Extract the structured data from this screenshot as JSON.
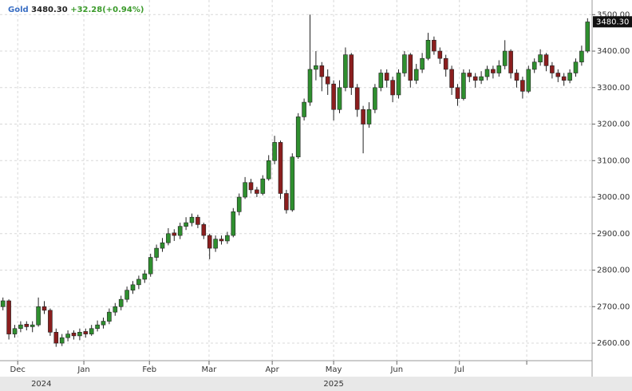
{
  "chart_data": {
    "type": "candlestick",
    "symbol": "Gold",
    "last_price": {
      "value": 3480.3,
      "label": "3480.30"
    },
    "change_label": "+32.28(+0.94%)",
    "up_color": "#2f8f2f",
    "down_color": "#8b1e1e",
    "grid": true,
    "ylim": [
      2552,
      3540
    ],
    "yticks": [
      {
        "value": 2600,
        "label": "2600.00"
      },
      {
        "value": 2700,
        "label": "2700.00"
      },
      {
        "value": 2800,
        "label": "2800.00"
      },
      {
        "value": 2900,
        "label": "2900.00"
      },
      {
        "value": 3000,
        "label": "3000.00"
      },
      {
        "value": 3100,
        "label": "3100.00"
      },
      {
        "value": 3200,
        "label": "3200.00"
      },
      {
        "value": 3300,
        "label": "3300.00"
      },
      {
        "value": 3400,
        "label": "3400.00"
      },
      {
        "value": 3500,
        "label": "3500.00"
      }
    ],
    "xticks": [
      {
        "value": 2.5,
        "label": "Dec"
      },
      {
        "value": 13.7,
        "label": "Jan"
      },
      {
        "value": 24.8,
        "label": "Feb"
      },
      {
        "value": 34.9,
        "label": "Mar"
      },
      {
        "value": 45.6,
        "label": "Apr"
      },
      {
        "value": 56,
        "label": "May"
      },
      {
        "value": 66.7,
        "label": "Jun"
      },
      {
        "value": 77.3,
        "label": "Jul"
      },
      {
        "value": 88.7,
        "label": null
      }
    ],
    "year_labels": [
      {
        "value": 6.5,
        "label": "2024"
      },
      {
        "value": 56,
        "label": "2025"
      }
    ],
    "open": [
      2700,
      2716,
      2625,
      2640,
      2652,
      2645,
      2650,
      2700,
      2690,
      2630,
      2600,
      2615,
      2628,
      2620,
      2632,
      2625,
      2640,
      2650,
      2660,
      2685,
      2700,
      2720,
      2745,
      2760,
      2775,
      2790,
      2835,
      2860,
      2875,
      2902,
      2895,
      2920,
      2930,
      2945,
      2925,
      2895,
      2860,
      2885,
      2880,
      2895,
      2960,
      3000,
      3040,
      3020,
      3010,
      3050,
      3100,
      3150,
      3010,
      2965,
      3110,
      3220,
      3260,
      3350,
      3360,
      3330,
      3310,
      3240,
      3300,
      3390,
      3300,
      3240,
      3200,
      3240,
      3300,
      3340,
      3320,
      3280,
      3340,
      3390,
      3320,
      3350,
      3380,
      3430,
      3400,
      3380,
      3350,
      3300,
      3270,
      3340,
      3330,
      3320,
      3330,
      3350,
      3340,
      3360,
      3400,
      3340,
      3320,
      3290,
      3350,
      3370,
      3390,
      3360,
      3340,
      3330,
      3320,
      3340,
      3370,
      3400
    ],
    "high": [
      2725,
      2720,
      2650,
      2660,
      2660,
      2660,
      2725,
      2715,
      2695,
      2640,
      2625,
      2635,
      2635,
      2640,
      2640,
      2650,
      2662,
      2670,
      2695,
      2710,
      2730,
      2755,
      2770,
      2785,
      2800,
      2845,
      2870,
      2888,
      2915,
      2912,
      2930,
      2945,
      2955,
      2952,
      2930,
      2900,
      2895,
      2895,
      2905,
      2970,
      3010,
      3055,
      3050,
      3028,
      3060,
      3115,
      3168,
      3155,
      3020,
      3120,
      3230,
      3270,
      3500,
      3400,
      3370,
      3350,
      3320,
      3320,
      3410,
      3395,
      3310,
      3250,
      3260,
      3310,
      3350,
      3350,
      3330,
      3350,
      3400,
      3395,
      3365,
      3395,
      3450,
      3440,
      3410,
      3390,
      3360,
      3310,
      3350,
      3350,
      3340,
      3345,
      3360,
      3360,
      3375,
      3430,
      3405,
      3350,
      3330,
      3360,
      3380,
      3405,
      3395,
      3370,
      3350,
      3340,
      3350,
      3380,
      3415,
      3490
    ],
    "low": [
      2690,
      2610,
      2615,
      2630,
      2635,
      2630,
      2645,
      2680,
      2620,
      2590,
      2592,
      2605,
      2610,
      2608,
      2615,
      2620,
      2632,
      2640,
      2652,
      2675,
      2690,
      2712,
      2735,
      2748,
      2765,
      2782,
      2825,
      2850,
      2868,
      2880,
      2885,
      2910,
      2920,
      2915,
      2885,
      2830,
      2850,
      2870,
      2872,
      2890,
      2950,
      2995,
      3010,
      3000,
      3005,
      3045,
      3090,
      2995,
      2955,
      2960,
      3105,
      3210,
      3250,
      3320,
      3290,
      3280,
      3210,
      3230,
      3290,
      3280,
      3220,
      3120,
      3190,
      3230,
      3290,
      3300,
      3260,
      3270,
      3330,
      3300,
      3310,
      3340,
      3375,
      3390,
      3365,
      3330,
      3280,
      3250,
      3265,
      3315,
      3300,
      3310,
      3320,
      3325,
      3330,
      3350,
      3325,
      3300,
      3270,
      3285,
      3340,
      3360,
      3345,
      3325,
      3315,
      3305,
      3312,
      3330,
      3360,
      3395
    ],
    "close": [
      2716,
      2625,
      2640,
      2650,
      2645,
      2650,
      2700,
      2690,
      2630,
      2600,
      2615,
      2625,
      2620,
      2630,
      2625,
      2640,
      2650,
      2660,
      2685,
      2700,
      2720,
      2745,
      2760,
      2775,
      2790,
      2835,
      2860,
      2875,
      2900,
      2895,
      2920,
      2930,
      2945,
      2925,
      2895,
      2860,
      2885,
      2880,
      2895,
      2960,
      3000,
      3040,
      3020,
      3010,
      3050,
      3100,
      3150,
      3010,
      2965,
      3110,
      3220,
      3260,
      3350,
      3360,
      3330,
      3310,
      3240,
      3300,
      3390,
      3300,
      3240,
      3200,
      3240,
      3300,
      3340,
      3320,
      3280,
      3340,
      3390,
      3320,
      3350,
      3380,
      3430,
      3400,
      3380,
      3350,
      3300,
      3270,
      3340,
      3330,
      3320,
      3330,
      3350,
      3340,
      3360,
      3400,
      3340,
      3320,
      3290,
      3350,
      3370,
      3390,
      3360,
      3340,
      3330,
      3320,
      3340,
      3370,
      3400,
      3480
    ]
  }
}
